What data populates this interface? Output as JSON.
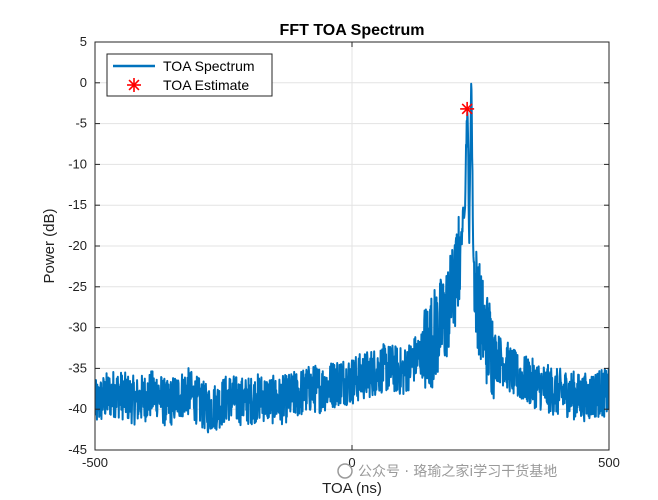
{
  "chart_data": {
    "type": "line",
    "title": "FFT TOA Spectrum",
    "xlabel": "TOA (ns)",
    "ylabel": "Power (dB)",
    "xlim": [
      -500,
      500
    ],
    "ylim": [
      -45,
      5
    ],
    "x_ticks": [
      -500,
      0,
      500
    ],
    "y_ticks": [
      5,
      0,
      -5,
      -10,
      -15,
      -20,
      -25,
      -30,
      -35,
      -40,
      -45
    ],
    "grid": true,
    "legend_position": "top-left",
    "series": [
      {
        "name": "TOA Spectrum",
        "color": "#0072BD",
        "x": [
          -500,
          -480,
          -460,
          -440,
          -420,
          -400,
          -380,
          -360,
          -340,
          -320,
          -300,
          -280,
          -260,
          -240,
          -220,
          -200,
          -180,
          -160,
          -140,
          -120,
          -100,
          -80,
          -60,
          -40,
          -20,
          0,
          20,
          40,
          60,
          80,
          100,
          120,
          140,
          160,
          180,
          200,
          210,
          220,
          222,
          224,
          226,
          228,
          230,
          232,
          234,
          236,
          240,
          250,
          260,
          280,
          300,
          320,
          340,
          360,
          380,
          400,
          420,
          440,
          460,
          480,
          500
        ],
        "y": [
          -39.5,
          -38.5,
          -38.0,
          -38.5,
          -39.0,
          -38.5,
          -38.0,
          -39.5,
          -38.5,
          -37.8,
          -39.0,
          -40.0,
          -39.5,
          -38.5,
          -39.0,
          -39.0,
          -38.5,
          -38.8,
          -39.0,
          -38.5,
          -38.0,
          -37.5,
          -37.5,
          -37.0,
          -36.5,
          -36.5,
          -36.0,
          -35.5,
          -35.0,
          -35.0,
          -35.5,
          -34.0,
          -33.0,
          -31.0,
          -29.0,
          -25.0,
          -21.0,
          -14.0,
          -8.0,
          -3.0,
          -8.0,
          -20.0,
          -10.0,
          2.0,
          -10.0,
          -21.0,
          -25.0,
          -28.5,
          -31.0,
          -33.5,
          -34.5,
          -36.0,
          -36.5,
          -37.0,
          -37.5,
          -38.0,
          -38.0,
          -38.5,
          -38.5,
          -38.0,
          -38.0
        ]
      },
      {
        "name": "TOA Estimate",
        "color": "#FF0000",
        "marker": "*",
        "x": [
          224
        ],
        "y": [
          -3.2
        ]
      }
    ]
  },
  "watermark": "公众号 · 珞瑜之家i学习干货基地"
}
